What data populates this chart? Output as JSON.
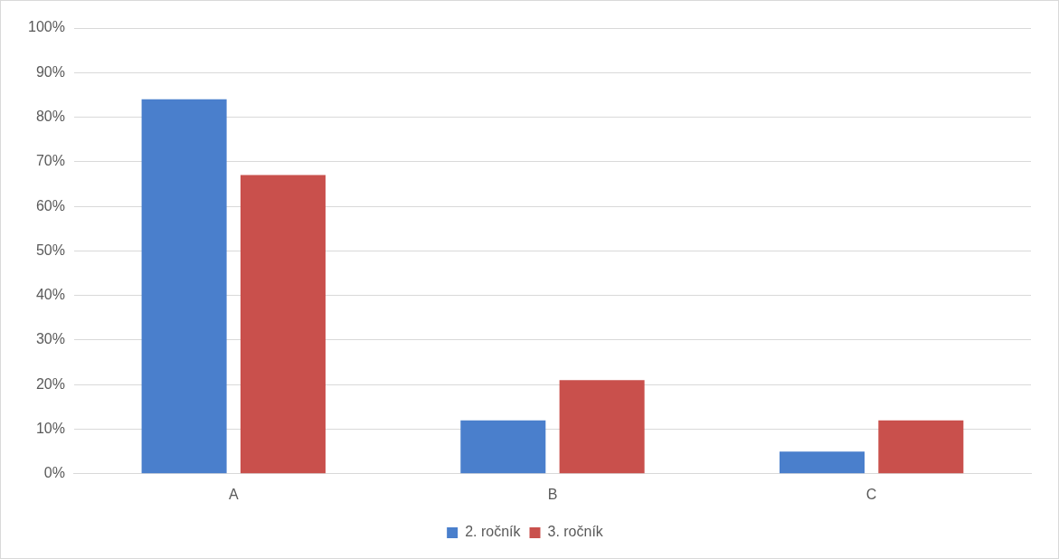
{
  "chart_data": {
    "type": "bar",
    "categories": [
      "A",
      "B",
      "C"
    ],
    "series": [
      {
        "name": "2. ročník",
        "color": "#4a7fcc",
        "values": [
          84,
          12,
          5
        ]
      },
      {
        "name": "3. ročník",
        "color": "#c9504c",
        "values": [
          67,
          21,
          12
        ]
      }
    ],
    "ylim": [
      0,
      100
    ],
    "yticks": [
      {
        "value": 0,
        "label": "0%"
      },
      {
        "value": 10,
        "label": "10%"
      },
      {
        "value": 20,
        "label": "20%"
      },
      {
        "value": 30,
        "label": "30%"
      },
      {
        "value": 40,
        "label": "40%"
      },
      {
        "value": 50,
        "label": "50%"
      },
      {
        "value": 60,
        "label": "60%"
      },
      {
        "value": 70,
        "label": "70%"
      },
      {
        "value": 80,
        "label": "80%"
      },
      {
        "value": 90,
        "label": "90%"
      },
      {
        "value": 100,
        "label": "100%"
      }
    ],
    "grid": "y",
    "legend": "bottom"
  }
}
